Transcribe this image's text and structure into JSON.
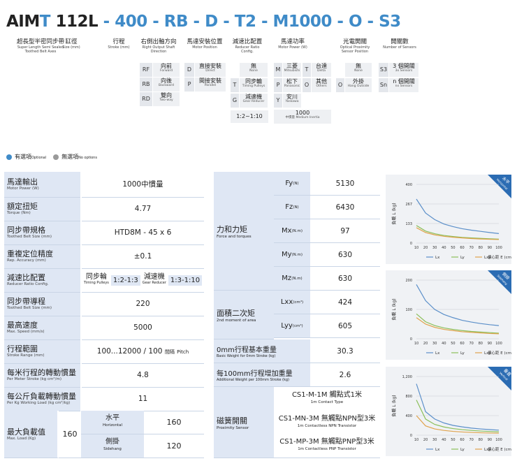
{
  "model": {
    "parts": [
      {
        "text": "AIM",
        "color": "black"
      },
      {
        "text": "T",
        "color": "blue"
      },
      {
        "text": " 112L",
        "color": "black"
      },
      {
        "text": " - ",
        "color": "blue"
      },
      {
        "text": "400",
        "color": "blue"
      },
      {
        "text": " - ",
        "color": "blue"
      },
      {
        "text": "RB",
        "color": "blue"
      },
      {
        "text": " - ",
        "color": "blue"
      },
      {
        "text": "D",
        "color": "blue"
      },
      {
        "text": " - ",
        "color": "blue"
      },
      {
        "text": "T2",
        "color": "blue"
      },
      {
        "text": " - ",
        "color": "blue"
      },
      {
        "text": "M1000",
        "color": "blue"
      },
      {
        "text": " - ",
        "color": "blue"
      },
      {
        "text": "O",
        "color": "blue"
      },
      {
        "text": " - ",
        "color": "blue"
      },
      {
        "text": "S3",
        "color": "blue"
      }
    ]
  },
  "segments": [
    {
      "zh": "超長型半密同步帶",
      "en1": "Super Length Semi Sealed",
      "en2": "Toothed Belt Axes"
    },
    {
      "zh": "缸徑",
      "en1": "Size (mm)",
      "en2": ""
    },
    {
      "zh": "行程",
      "en1": "Stroke (mm)",
      "en2": ""
    },
    {
      "zh": "右側出軸方向",
      "en1": "Right Output Shaft",
      "en2": "Direction"
    },
    {
      "zh": "馬達安裝位置",
      "en1": "Motor Position",
      "en2": ""
    },
    {
      "zh": "減速比配置",
      "en1": "Reducer Ratio",
      "en2": "Config."
    },
    {
      "zh": "馬達功率",
      "en1": "Motor Power (W)",
      "en2": ""
    },
    {
      "zh": "光電開關",
      "en1": "Optical Proximity",
      "en2": "Sensor Position"
    },
    {
      "zh": "開關數",
      "en1": "Number of Sensors",
      "en2": ""
    }
  ],
  "options": {
    "direction": [
      {
        "code": "RF",
        "zh": "向前",
        "en": "Forward"
      },
      {
        "code": "RB",
        "zh": "向後",
        "en": "Backward"
      },
      {
        "code": "RD",
        "zh": "雙向",
        "en": "Two-way"
      }
    ],
    "motor_pos": [
      {
        "code": "D",
        "zh": "直接安裝",
        "en": "Direct"
      },
      {
        "code": "P",
        "zh": "間接安裝",
        "en": "Parallel"
      }
    ],
    "reducer": [
      {
        "code": "",
        "zh": "無",
        "en": "None"
      },
      {
        "code": "T",
        "zh": "同步輪",
        "en": "Timing Pulleys"
      },
      {
        "code": "G",
        "zh": "減速機",
        "en": "Gear Reducer"
      }
    ],
    "reducer_ratio": "1:2~1:10",
    "motor_brand": [
      {
        "code": "M",
        "zh": "三菱",
        "en": "Mitsubishi",
        "code2": "T",
        "zh2": "台達",
        "en2": "Delta"
      },
      {
        "code": "P",
        "zh": "松下",
        "en": "Panasonic",
        "code2": "O",
        "zh2": "其他",
        "en2": "Others"
      },
      {
        "code": "Y",
        "zh": "安川",
        "en": "Yaskawa",
        "code2": "",
        "zh2": "",
        "en2": ""
      }
    ],
    "motor_power": {
      "value": "1000",
      "zh": "中慣量",
      "en": "Medium Inertia"
    },
    "sensor_pos": [
      {
        "code": "",
        "zh": "無",
        "en": "None"
      },
      {
        "code": "O",
        "zh": "外掛",
        "en": "Hang Outside"
      }
    ],
    "sensor_num": [
      {
        "code": "S3",
        "zh": "3 個開關",
        "en": "3x Sensors"
      },
      {
        "code": "Sn",
        "zh": "n 個開關",
        "en": "nx Sensors"
      }
    ]
  },
  "legend": {
    "optional_zh": "有選項",
    "optional_en": "Optional",
    "none_zh": "無選項",
    "none_en": "No options",
    "optional_color": "#3f8bc8",
    "none_color": "#9a9a9a"
  },
  "left_table": {
    "motor_power": {
      "zh": "馬達輸出",
      "en": "Motor Power (W)",
      "value": "1000中慣量"
    },
    "torque": {
      "zh": "額定扭矩",
      "en": "Torque (Nm)",
      "value": "4.77"
    },
    "belt": {
      "zh": "同步帶規格",
      "en": "Toothed Belt Size (mm)",
      "value": "HTD8M - 45 x 6"
    },
    "accuracy": {
      "zh": "重複定位精度",
      "en": "Rep. Accuracy (mm)",
      "value": "±0.1"
    },
    "reducer": {
      "zh": "減速比配置",
      "en": "Reducer Ratio Config.",
      "a_zh": "同步輪",
      "a_en": "Timing Pulleys",
      "a_val": "1:2-1:3",
      "b_zh": "減速機",
      "b_en": "Gear Reducer",
      "b_val": "1:3-1:10"
    },
    "lead": {
      "zh": "同步帶導程",
      "en": "Toothed Belt Size (mm)",
      "value": "220"
    },
    "speed": {
      "zh": "最高速度",
      "en": "Max. Speed (mm/s)",
      "value": "5000"
    },
    "stroke": {
      "zh": "行程範圍",
      "en": "Stroke Range (mm)",
      "value": "100...12000 / 100",
      "pitch_zh": "間隔",
      "pitch_en": "Pitch"
    },
    "inertia_m": {
      "zh": "每米行程的轉動慣量",
      "en": "Per Meter Stroke (kg cm²/m)",
      "value": "4.8"
    },
    "inertia_kg": {
      "zh": "每公斤負載轉動慣量",
      "en": "Per Kg Working Load (kg cm²/kg)",
      "value": "11"
    },
    "load": {
      "zh": "最大負載值",
      "en": "Max. Load (Kg)",
      "value": "160",
      "h_zh": "水平",
      "h_en": "Horizontal",
      "h_val": "160",
      "s_zh": "側掛",
      "s_en": "Sidehang",
      "s_val": "120"
    }
  },
  "right_table": {
    "force": {
      "zh": "力和力矩",
      "en": "Force and torques"
    },
    "fy": {
      "sym": "Fy",
      "unit": "(N)",
      "value": "5130"
    },
    "fz": {
      "sym": "Fz",
      "unit": "(N)",
      "value": "6430"
    },
    "mx": {
      "sym": "Mx",
      "unit": "(N.m)",
      "value": "97"
    },
    "my": {
      "sym": "My",
      "unit": "(N.m)",
      "value": "630"
    },
    "mz": {
      "sym": "Mz",
      "unit": "(N.m)",
      "value": "630"
    },
    "moment": {
      "zh": "面積二次矩",
      "en": "2nd moment of area"
    },
    "lxx": {
      "sym": "Lxx",
      "unit": "(cm⁴)",
      "value": "424"
    },
    "lyy": {
      "sym": "Lyy",
      "unit": "(cm⁴)",
      "value": "605"
    },
    "basew": {
      "zh": "0mm行程基本重量",
      "en": "Basic Weight for 0mm Stroke (kg)",
      "value": "30.3"
    },
    "addw": {
      "zh": "每100mm行程增加重量",
      "en": "Additional Weight per 100mm Stroke (kg)",
      "value": "2.6"
    },
    "sensor": {
      "zh": "磁簧開關",
      "en": "Proximity Sensor",
      "s1": "CS1-M-1M 觸點式1米",
      "s1en": "1m Contact Type",
      "s2": "CS1-MN-3M 無觸點NPN型3米",
      "s2en": "1m Contactless NPN Transistor",
      "s3": "CS1-MP-3M 無觸點PNP型3米",
      "s3en": "1m Contactless PNP Transistor"
    }
  },
  "chart_data": [
    {
      "type": "line",
      "corner_zh": "水平",
      "corner_en": "Horizontal",
      "ylabel": "負載 L (kg)",
      "xlabel": "偏心距 E (cm)",
      "x": [
        10,
        20,
        30,
        40,
        50,
        60,
        70,
        80,
        90,
        100
      ],
      "yticks": [
        "400",
        "267",
        "133",
        "0"
      ],
      "ylim": [
        0,
        400
      ],
      "series": [
        {
          "name": "Lx",
          "color": "#5b8fc9",
          "values": [
            300,
            205,
            160,
            130,
            112,
            98,
            88,
            80,
            72,
            65
          ]
        },
        {
          "name": "Ly",
          "color": "#8bbf5a",
          "values": [
            120,
            82,
            64,
            52,
            45,
            39,
            35,
            32,
            29,
            27
          ]
        },
        {
          "name": "Lxy",
          "color": "#e0a34c",
          "values": [
            105,
            72,
            56,
            46,
            40,
            35,
            31,
            28,
            26,
            24
          ]
        }
      ]
    },
    {
      "type": "line",
      "corner_zh": "側掛",
      "corner_en": "Sidehang",
      "ylabel": "負載 L (kg)",
      "xlabel": "偏心距 E (cm)",
      "x": [
        10,
        20,
        30,
        40,
        50,
        60,
        70,
        80,
        90,
        100
      ],
      "yticks": [
        "200",
        "100",
        "0"
      ],
      "ylim": [
        0,
        200
      ],
      "series": [
        {
          "name": "Lx",
          "color": "#5b8fc9",
          "values": [
            185,
            130,
            100,
            83,
            72,
            63,
            57,
            52,
            48,
            45
          ]
        },
        {
          "name": "Ly",
          "color": "#8bbf5a",
          "values": [
            85,
            58,
            45,
            37,
            32,
            28,
            25,
            23,
            21,
            19
          ]
        },
        {
          "name": "Lxy",
          "color": "#e0a34c",
          "values": [
            72,
            50,
            39,
            32,
            28,
            24,
            22,
            20,
            18,
            17
          ]
        }
      ]
    },
    {
      "type": "line",
      "corner_zh": "垂直",
      "corner_en": "Vertical",
      "ylabel": "負載 L (kg)",
      "xlabel": "偏心距 E (cm)",
      "x": [
        10,
        20,
        30,
        40,
        50,
        60,
        70,
        80,
        90,
        100
      ],
      "yticks": [
        "1,200",
        "800",
        "400",
        "0"
      ],
      "ylim": [
        0,
        1200
      ],
      "series": [
        {
          "name": "Lx",
          "color": "#5b8fc9",
          "values": [
            1050,
            480,
            330,
            250,
            200,
            170,
            145,
            128,
            114,
            103
          ]
        },
        {
          "name": "Ly",
          "color": "#8bbf5a",
          "values": [
            720,
            330,
            220,
            168,
            135,
            113,
            97,
            85,
            76,
            68
          ]
        },
        {
          "name": "Lxy",
          "color": "#e0a34c",
          "values": [
            400,
            190,
            128,
            97,
            78,
            65,
            56,
            49,
            44,
            40
          ]
        }
      ]
    }
  ]
}
